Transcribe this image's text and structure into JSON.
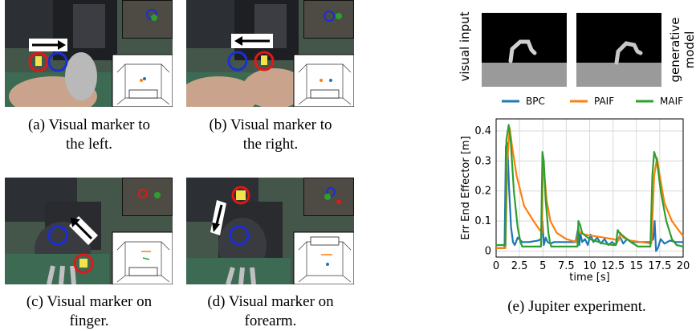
{
  "figure": {
    "panels": [
      {
        "id": "a",
        "caption": "(a) Visual marker to the left.",
        "caption_line1": "(a) Visual marker to",
        "caption_line2": "the left."
      },
      {
        "id": "b",
        "caption": "(b) Visual marker to the right.",
        "caption_line1": "(b) Visual marker to",
        "caption_line2": "the right."
      },
      {
        "id": "c",
        "caption": "(c) Visual marker on finger.",
        "caption_line1": "(c) Visual marker on",
        "caption_line2": "finger."
      },
      {
        "id": "d",
        "caption": "(d) Visual marker on forearm.",
        "caption_line1": "(d) Visual marker on",
        "caption_line2": "forearm."
      }
    ],
    "panel_e": {
      "caption": "(e) Jupiter experiment.",
      "image_labels": {
        "left": "visual input",
        "right_line1": "generative",
        "right_line2": "model"
      }
    },
    "colors": {
      "blue_marker": "#1a2fd6",
      "red_marker": "#e01818",
      "yellow_marker": "#f2e34a",
      "arrow": "#ffffff"
    }
  },
  "chart_data": {
    "type": "line",
    "xlabel": "time [s]",
    "ylabel": "Err End Effector [m]",
    "xlim": [
      0,
      20
    ],
    "ylim": [
      -0.02,
      0.44
    ],
    "xticks": [
      "0",
      "2.5",
      "5",
      "7.5",
      "10",
      "12.5",
      "15",
      "17.5",
      "20"
    ],
    "yticks": [
      "0",
      "0.1",
      "0.2",
      "0.3",
      "0.4"
    ],
    "grid": true,
    "legend": "top",
    "series": [
      {
        "name": "BPC",
        "color": "#1f77b4",
        "x": [
          0,
          0.9,
          1.05,
          1.2,
          1.4,
          1.6,
          1.8,
          2.0,
          2.3,
          2.8,
          3.5,
          4.5,
          4.8,
          4.95,
          5.1,
          5.3,
          5.5,
          5.8,
          6.2,
          7,
          8.5,
          8.8,
          8.9,
          9.0,
          9.2,
          9.5,
          9.8,
          10.1,
          10.4,
          10.8,
          11.2,
          11.6,
          12.0,
          12.4,
          12.8,
          13.2,
          13.6,
          14.0,
          14.5,
          15.5,
          16.5,
          16.8,
          16.95,
          17.1,
          17.3,
          17.6,
          18.0,
          18.6,
          19.2,
          20
        ],
        "y": [
          0.01,
          0.01,
          0.35,
          0.36,
          0.2,
          0.08,
          0.03,
          0.02,
          0.045,
          0.03,
          0.03,
          0.035,
          0.04,
          0.1,
          0.02,
          0.045,
          0.03,
          0.025,
          0.03,
          0.03,
          0.03,
          0.08,
          0.02,
          0.06,
          0.03,
          0.04,
          0.02,
          0.055,
          0.03,
          0.045,
          0.025,
          0.04,
          0.02,
          0.03,
          0.02,
          0.05,
          0.025,
          0.04,
          0.03,
          0.03,
          0.03,
          0.04,
          0.1,
          0.0,
          0.01,
          0.04,
          0.025,
          0.035,
          0.03,
          0.03
        ]
      },
      {
        "name": "PAIF",
        "color": "#ff7f0e",
        "x": [
          0,
          1.0,
          1.2,
          1.45,
          1.7,
          2.2,
          3,
          4,
          4.9,
          5.0,
          5.15,
          5.4,
          5.8,
          6.5,
          7.5,
          8.6,
          8.8,
          9.0,
          9.5,
          10.5,
          11.5,
          12.5,
          13.1,
          13.3,
          13.6,
          14.3,
          15.5,
          16.6,
          16.9,
          17.2,
          17.5,
          18.0,
          18.8,
          19.5,
          20
        ],
        "y": [
          0.01,
          0.01,
          0.3,
          0.41,
          0.35,
          0.25,
          0.15,
          0.1,
          0.06,
          0.29,
          0.26,
          0.17,
          0.1,
          0.06,
          0.04,
          0.03,
          0.07,
          0.06,
          0.055,
          0.05,
          0.045,
          0.04,
          0.035,
          0.06,
          0.045,
          0.035,
          0.03,
          0.025,
          0.25,
          0.31,
          0.25,
          0.16,
          0.1,
          0.07,
          0.05
        ]
      },
      {
        "name": "MAIF",
        "color": "#2ca02c",
        "x": [
          0,
          1.0,
          1.1,
          1.35,
          1.55,
          1.9,
          2.3,
          2.6,
          2.8,
          4.8,
          4.95,
          5.1,
          5.3,
          5.6,
          5.75,
          5.9,
          8.7,
          8.8,
          9.0,
          9.2,
          9.6,
          10,
          10.5,
          11,
          11.5,
          12.5,
          12.8,
          13.0,
          13.2,
          13.6,
          14.0,
          14.4,
          14.9,
          15.2,
          16.5,
          16.7,
          16.9,
          17.2,
          17.6,
          18.2,
          18.8,
          19.3,
          20
        ],
        "y": [
          0.02,
          0.02,
          0.37,
          0.42,
          0.37,
          0.2,
          0.08,
          0.03,
          0.015,
          0.015,
          0.33,
          0.3,
          0.17,
          0.06,
          0.03,
          0.015,
          0.015,
          0.1,
          0.085,
          0.06,
          0.05,
          0.04,
          0.035,
          0.03,
          0.025,
          0.02,
          0.02,
          0.07,
          0.06,
          0.05,
          0.04,
          0.03,
          0.02,
          0.015,
          0.015,
          0.25,
          0.33,
          0.3,
          0.2,
          0.1,
          0.04,
          0.02,
          0.015
        ]
      }
    ]
  }
}
